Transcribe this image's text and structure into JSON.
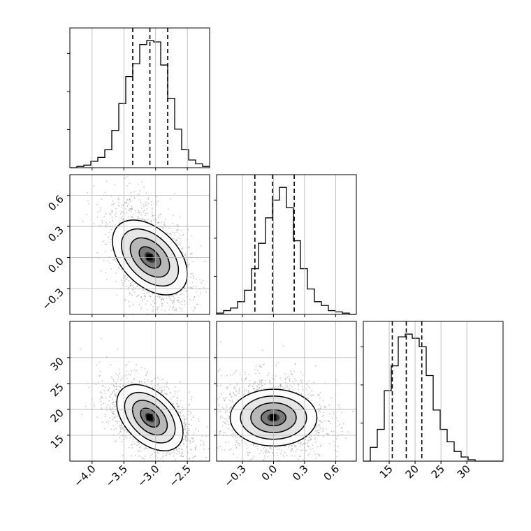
{
  "chart_data": {
    "type": "corner",
    "colors": {
      "hist": "#000000",
      "points": "#9a9a9a",
      "grid": "#b0b0b0",
      "density_dark": "#000000",
      "density_light": "#ffffff"
    },
    "grid": true,
    "params": [
      {
        "range": [
          -4.35,
          -2.15
        ],
        "ticks": [
          -4.0,
          -3.5,
          -3.0,
          -2.5
        ],
        "tick_labels": [
          "−4.0",
          "−3.5",
          "−3.0",
          "−2.5"
        ],
        "quantiles": [
          -3.36,
          -3.09,
          -2.81
        ],
        "mean": -3.09,
        "sd": 0.24,
        "hist": {
          "edges_start": -4.35,
          "bin_width": 0.11,
          "counts": [
            0,
            1,
            2,
            5,
            8,
            14,
            29,
            50,
            71,
            81,
            96,
            99,
            98,
            80,
            54,
            30,
            14,
            6,
            3,
            1
          ]
        }
      },
      {
        "range": [
          -0.55,
          0.8
        ],
        "ticks": [
          -0.3,
          0.0,
          0.3,
          0.6
        ],
        "tick_labels": [
          "−0.3",
          "0.0",
          "0.3",
          "0.6"
        ],
        "quantiles": [
          -0.18,
          -0.01,
          0.2
        ],
        "mean": 0.0,
        "sd": 0.19,
        "hist": {
          "edges_start": -0.55,
          "bin_width": 0.0675,
          "counts": [
            1,
            3,
            5,
            10,
            19,
            36,
            56,
            76,
            90,
            100,
            84,
            58,
            36,
            20,
            10,
            7,
            3,
            2,
            1,
            0
          ]
        }
      },
      {
        "range": [
          10.0,
          37.0
        ],
        "ticks": [
          15,
          20,
          25,
          30
        ],
        "tick_labels": [
          "15",
          "20",
          "25",
          "30"
        ],
        "quantiles": [
          15.6,
          18.3,
          21.3
        ],
        "mean": 18.4,
        "sd": 2.9,
        "hist": {
          "edges_start": 10.0,
          "bin_width": 1.35,
          "counts": [
            0,
            10,
            23,
            51,
            69,
            90,
            92,
            89,
            83,
            62,
            37,
            23,
            14,
            7,
            3,
            1,
            0,
            0,
            0,
            0
          ]
        }
      }
    ],
    "correlations": {
      "0_1": -0.45,
      "0_2": -0.45,
      "1_2": -0.1
    }
  }
}
